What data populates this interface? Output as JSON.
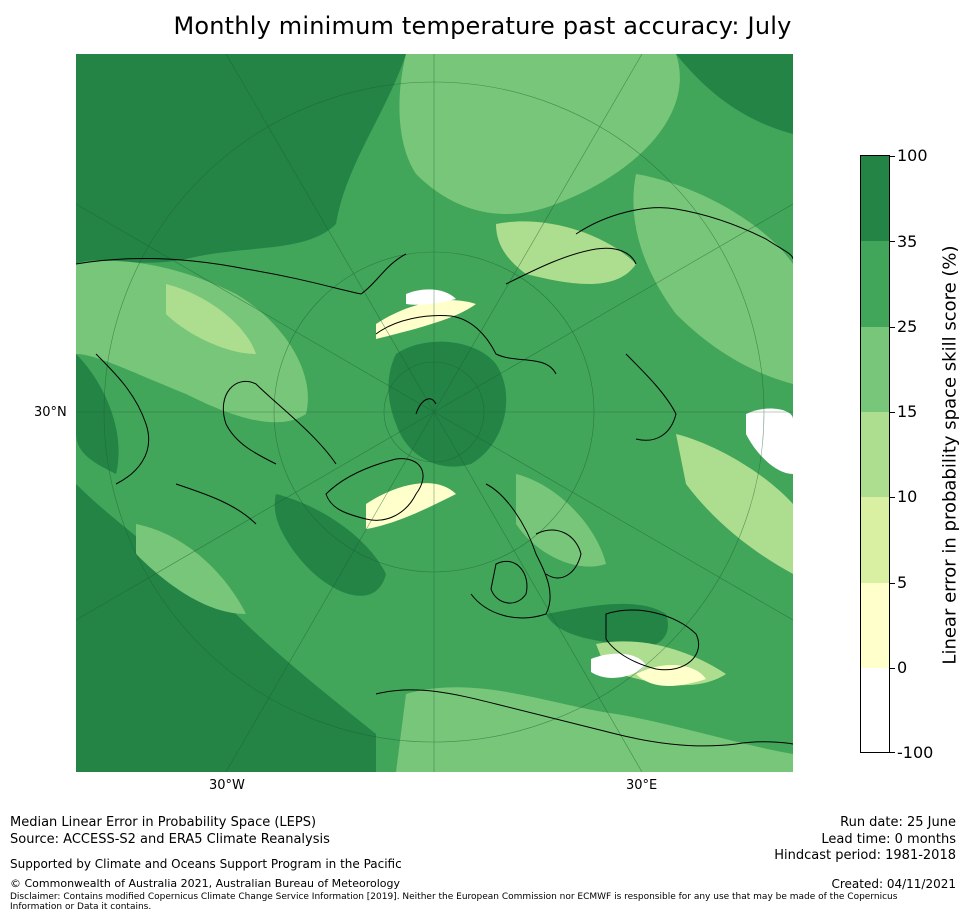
{
  "title": "Monthly minimum temperature past accuracy: July",
  "map": {
    "latitude_labels": [
      "30°N"
    ],
    "longitude_labels": [
      "30°W",
      "30°E"
    ]
  },
  "colorbar": {
    "label": "Linear error in probability space skill score (%)",
    "ticks": [
      "100",
      "35",
      "25",
      "15",
      "10",
      "5",
      "0",
      "-100"
    ],
    "bins": [
      {
        "range": "35 to 100",
        "color": "#238446"
      },
      {
        "range": "25 to 35",
        "color": "#41a55a"
      },
      {
        "range": "15 to 25",
        "color": "#78c679"
      },
      {
        "range": "10 to 15",
        "color": "#addd8e"
      },
      {
        "range": "5 to 10",
        "color": "#d9f0a3"
      },
      {
        "range": "0 to 5",
        "color": "#ffffcc"
      },
      {
        "range": "-100 to 0",
        "color": "#ffffff"
      }
    ]
  },
  "footer": {
    "line1": "Median Linear Error in Probability Space (LEPS)",
    "line2": "Source: ACCESS-S2 and ERA5 Climate Reanalysis",
    "support": "Supported by Climate and Oceans Support Program in the Pacific",
    "copyright": "© Commonwealth of Australia 2021, Australian Bureau of Meteorology",
    "disclaimer": "Disclaimer: Contains modified Copernicus Climate Change Service Information [2019]. Neither the European Commission nor ECMWF is responsible for any use that may be made of the Copernicus Information or Data it contains.",
    "run_date": "Run date: 25 June",
    "lead_time": "Lead time: 0 months",
    "hindcast": "Hindcast period: 1981-2018",
    "created": "Created: 04/11/2021"
  }
}
